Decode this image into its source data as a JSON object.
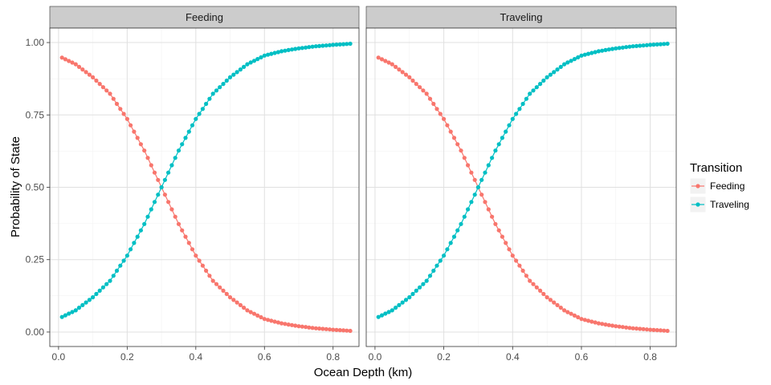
{
  "chart_data": {
    "type": "line",
    "xlabel": "Ocean Depth (km)",
    "ylabel": "Probability of State",
    "xlim": [
      0.0,
      0.85
    ],
    "ylim": [
      0.0,
      1.0
    ],
    "x_ticks": [
      "0.0",
      "0.2",
      "0.4",
      "0.6",
      "0.8"
    ],
    "y_ticks": [
      "0.00",
      "0.25",
      "0.50",
      "0.75",
      "1.00"
    ],
    "grid": true,
    "legend": {
      "title": "Transition",
      "position": "right",
      "entries": [
        "Feeding",
        "Traveling"
      ]
    },
    "colors": {
      "Feeding": "#F8766D",
      "Traveling": "#00BFC4"
    },
    "panels": [
      {
        "strip": "Feeding",
        "series": [
          {
            "name": "Feeding",
            "x": [
              0.01,
              0.05,
              0.1,
              0.15,
              0.2,
              0.25,
              0.3,
              0.35,
              0.4,
              0.45,
              0.5,
              0.55,
              0.6,
              0.65,
              0.7,
              0.75,
              0.8,
              0.85
            ],
            "values": [
              0.948,
              0.925,
              0.88,
              0.823,
              0.736,
              0.627,
              0.5,
              0.373,
              0.264,
              0.177,
              0.12,
              0.075,
              0.045,
              0.03,
              0.02,
              0.013,
              0.008,
              0.004
            ]
          },
          {
            "name": "Traveling",
            "x": [
              0.01,
              0.05,
              0.1,
              0.15,
              0.2,
              0.25,
              0.3,
              0.35,
              0.4,
              0.45,
              0.5,
              0.55,
              0.6,
              0.65,
              0.7,
              0.75,
              0.8,
              0.85
            ],
            "values": [
              0.052,
              0.075,
              0.12,
              0.177,
              0.264,
              0.373,
              0.5,
              0.627,
              0.736,
              0.823,
              0.88,
              0.925,
              0.955,
              0.97,
              0.98,
              0.987,
              0.992,
              0.996
            ]
          }
        ]
      },
      {
        "strip": "Traveling",
        "series": [
          {
            "name": "Feeding",
            "x": [
              0.01,
              0.05,
              0.1,
              0.15,
              0.2,
              0.25,
              0.3,
              0.35,
              0.4,
              0.45,
              0.5,
              0.55,
              0.6,
              0.65,
              0.7,
              0.75,
              0.8,
              0.85
            ],
            "values": [
              0.948,
              0.925,
              0.88,
              0.823,
              0.736,
              0.627,
              0.5,
              0.373,
              0.264,
              0.177,
              0.12,
              0.075,
              0.045,
              0.03,
              0.02,
              0.013,
              0.008,
              0.004
            ]
          },
          {
            "name": "Traveling",
            "x": [
              0.01,
              0.05,
              0.1,
              0.15,
              0.2,
              0.25,
              0.3,
              0.35,
              0.4,
              0.45,
              0.5,
              0.55,
              0.6,
              0.65,
              0.7,
              0.75,
              0.8,
              0.85
            ],
            "values": [
              0.052,
              0.075,
              0.12,
              0.177,
              0.264,
              0.373,
              0.5,
              0.627,
              0.736,
              0.823,
              0.88,
              0.925,
              0.955,
              0.97,
              0.98,
              0.987,
              0.992,
              0.996
            ]
          }
        ]
      }
    ]
  }
}
